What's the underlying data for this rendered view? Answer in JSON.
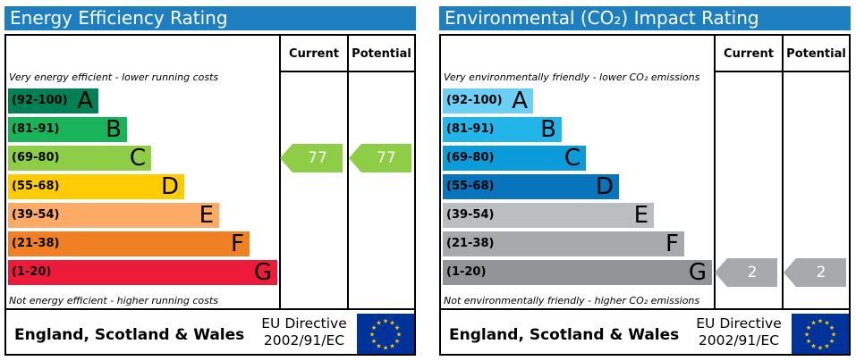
{
  "chart_data": [
    {
      "type": "bar",
      "title": "Energy Efficiency Rating",
      "columns": [
        "Current",
        "Potential"
      ],
      "top_note": "Very energy efficient - lower running costs",
      "bottom_note": "Not energy efficient - higher running costs",
      "categories": [
        "A",
        "B",
        "C",
        "D",
        "E",
        "F",
        "G"
      ],
      "ranges": [
        "(92-100)",
        "(81-91)",
        "(69-80)",
        "(55-68)",
        "(39-54)",
        "(21-38)",
        "(1-20)"
      ],
      "colors": [
        "#008054",
        "#19b459",
        "#8dce46",
        "#ffcc02",
        "#fcaa65",
        "#f08023",
        "#ed1b3a"
      ],
      "current": {
        "value": 77,
        "band": "C"
      },
      "potential": {
        "value": 77,
        "band": "C"
      },
      "indicator_color": "#8dce46",
      "footer": {
        "country": "England, Scotland & Wales",
        "directive_line1": "EU Directive",
        "directive_line2": "2002/91/EC"
      }
    },
    {
      "type": "bar",
      "title": "Environmental (CO₂) Impact Rating",
      "columns": [
        "Current",
        "Potential"
      ],
      "top_note": "Very environmentally friendly - lower CO₂ emissions",
      "bottom_note": "Not environmentally friendly - higher CO₂ emissions",
      "categories": [
        "A",
        "B",
        "C",
        "D",
        "E",
        "F",
        "G"
      ],
      "ranges": [
        "(92-100)",
        "(81-91)",
        "(69-80)",
        "(55-68)",
        "(39-54)",
        "(21-38)",
        "(1-20)"
      ],
      "colors": [
        "#6ccff6",
        "#21b5ea",
        "#0b9bd8",
        "#0774bb",
        "#bbbdbf",
        "#a7a9ac",
        "#919396"
      ],
      "current": {
        "value": 2,
        "band": "G"
      },
      "potential": {
        "value": 2,
        "band": "G"
      },
      "indicator_color": "#a7a9ac",
      "footer": {
        "country": "England, Scotland & Wales",
        "directive_line1": "EU Directive",
        "directive_line2": "2002/91/EC"
      }
    }
  ]
}
